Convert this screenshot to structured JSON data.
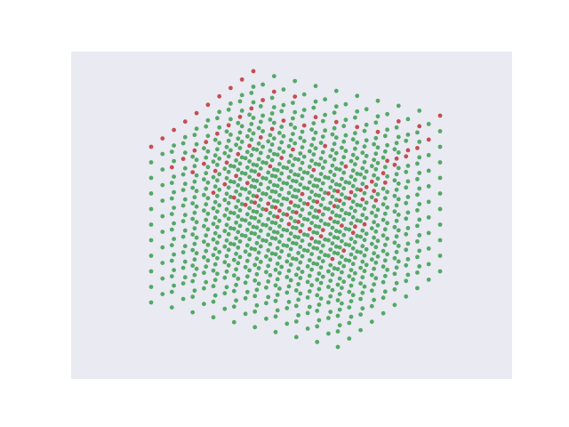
{
  "chart_data": {
    "type": "voxel_scatter",
    "fill_color": "#55a868",
    "surface_color": "#c44e52",
    "zlim": [
      0,
      10
    ],
    "heights": [
      [
        10,
        10,
        10,
        10,
        10,
        10,
        10,
        10,
        10,
        10
      ],
      [
        9,
        9,
        9,
        9,
        9,
        9,
        9,
        9,
        9,
        9
      ],
      [
        9,
        9,
        8,
        8,
        8,
        8,
        8,
        8,
        8,
        9
      ],
      [
        8,
        8,
        8,
        7,
        7,
        7,
        7,
        7,
        8,
        8
      ],
      [
        8,
        7,
        7,
        6,
        5,
        5,
        5,
        6,
        7,
        8
      ],
      [
        8,
        7,
        6,
        5,
        4,
        3,
        3,
        4,
        6,
        8
      ],
      [
        8,
        7,
        6,
        5,
        4,
        2,
        2,
        3,
        5,
        8
      ],
      [
        8,
        8,
        7,
        6,
        5,
        4,
        4,
        5,
        7,
        9
      ],
      [
        9,
        9,
        8,
        8,
        7,
        7,
        7,
        8,
        8,
        9
      ],
      [
        10,
        9,
        9,
        9,
        9,
        9,
        9,
        9,
        9,
        10
      ]
    ]
  }
}
